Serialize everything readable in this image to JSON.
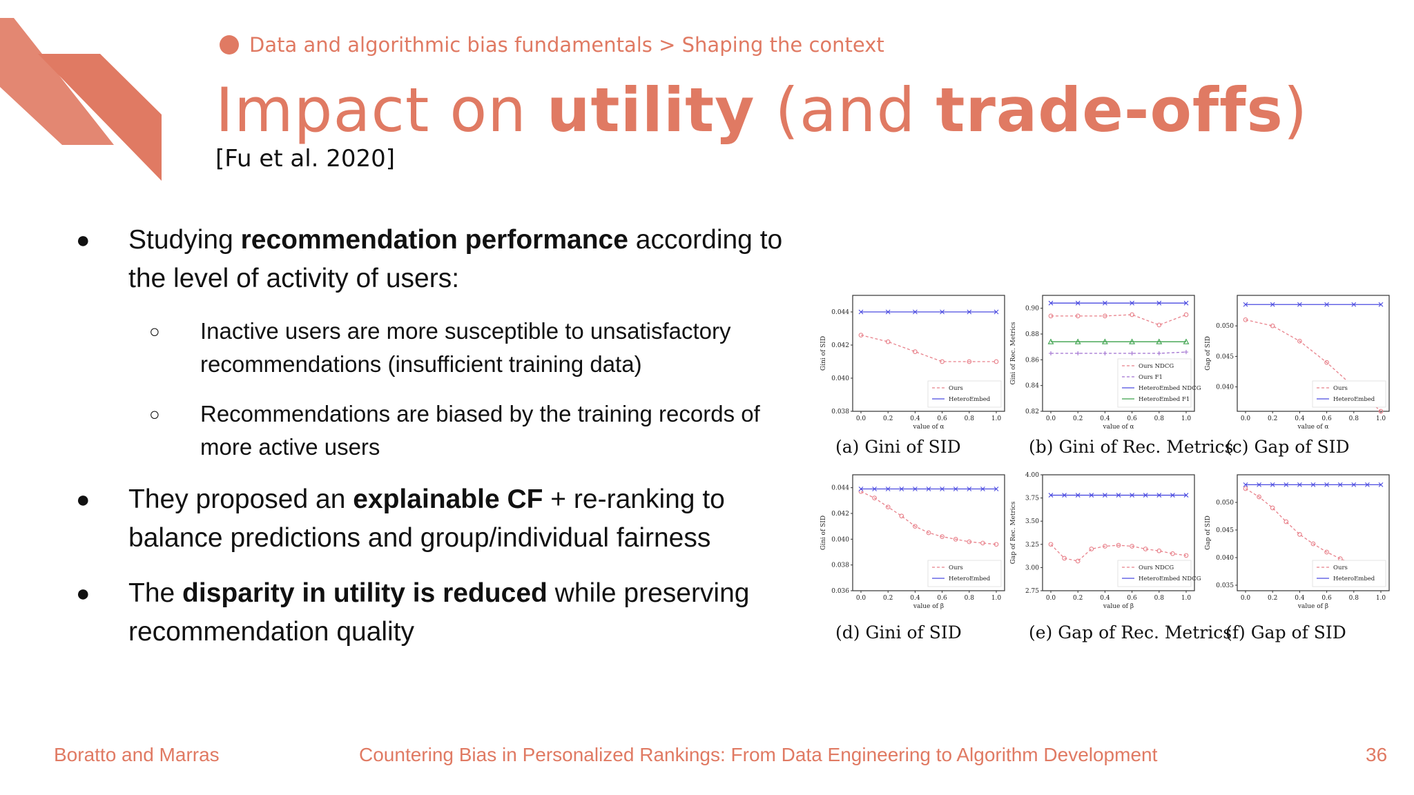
{
  "header": {
    "breadcrumb": "Data and algorithmic bias fundamentals > Shaping the context",
    "title_parts": [
      "Impact on ",
      "utility",
      " (and ",
      "trade-offs",
      ")"
    ],
    "citation": "[Fu et al. 2020]"
  },
  "bullets": [
    {
      "parts": [
        "Studying ",
        "recommendation performance",
        " according to the level of activity of users:"
      ]
    },
    {
      "sub": "Inactive users are more susceptible to unsatisfactory recommendations (insufficient training data)"
    },
    {
      "sub": "Recommendations are biased by the training records of more active users"
    },
    {
      "parts": [
        "They proposed an ",
        "explainable CF",
        " + re-ranking to balance predictions and group/individual fairness"
      ]
    },
    {
      "parts": [
        "The ",
        "disparity in utility is reduced",
        " while preserving recommendation quality"
      ]
    }
  ],
  "footer": {
    "authors": "Boratto and Marras",
    "course": "Countering Bias in Personalized Rankings: From Data Engineering to Algorithm Development",
    "page": "36"
  },
  "colors": {
    "accent": "#e07a63",
    "ours": "#e8808a",
    "hetero": "#4a4ae0",
    "green": "#3aa04a"
  },
  "chart_data": [
    {
      "id": "a",
      "type": "line",
      "caption": "(a) Gini of SID",
      "ylabel": "Gini of SID",
      "xlabel": "value of α",
      "ylim": [
        0.038,
        0.045
      ],
      "yticks": [
        "0.038",
        "0.040",
        "0.042",
        "0.044"
      ],
      "x": [
        0.0,
        0.2,
        0.4,
        0.6,
        0.8,
        1.0
      ],
      "xticks": [
        "0.0",
        "0.2",
        "0.4",
        "0.6",
        "0.8",
        "1.0"
      ],
      "series": [
        {
          "name": "Ours",
          "style": "ours",
          "values": [
            0.0426,
            0.0422,
            0.0416,
            0.041,
            0.041,
            0.041
          ]
        },
        {
          "name": "HeteroEmbed",
          "style": "hetero",
          "values": [
            0.044,
            0.044,
            0.044,
            0.044,
            0.044,
            0.044
          ]
        }
      ]
    },
    {
      "id": "b",
      "type": "line",
      "caption": "(b) Gini of Rec. Metrics",
      "ylabel": "Gini of Rec. Metrics",
      "xlabel": "value of α",
      "ylim": [
        0.82,
        0.91
      ],
      "yticks": [
        "0.82",
        "0.84",
        "0.86",
        "0.88",
        "0.90"
      ],
      "x": [
        0.0,
        0.2,
        0.4,
        0.6,
        0.8,
        1.0
      ],
      "xticks": [
        "0.0",
        "0.2",
        "0.4",
        "0.6",
        "0.8",
        "1.0"
      ],
      "series": [
        {
          "name": "Ours NDCG",
          "style": "ours",
          "values": [
            0.894,
            0.894,
            0.894,
            0.895,
            0.887,
            0.895
          ]
        },
        {
          "name": "Ours F1",
          "style": "oursf1",
          "values": [
            0.865,
            0.865,
            0.865,
            0.865,
            0.865,
            0.866
          ]
        },
        {
          "name": "HeteroEmbed NDCG",
          "style": "hetero",
          "values": [
            0.904,
            0.904,
            0.904,
            0.904,
            0.904,
            0.904
          ]
        },
        {
          "name": "HeteroEmbed F1",
          "style": "green",
          "values": [
            0.874,
            0.874,
            0.874,
            0.874,
            0.874,
            0.874
          ]
        }
      ]
    },
    {
      "id": "c",
      "type": "line",
      "caption": "(c) Gap of SID",
      "ylabel": "Gap of SID",
      "xlabel": "value of α",
      "ylim": [
        0.036,
        0.055
      ],
      "yticks": [
        "0.040",
        "0.045",
        "0.050"
      ],
      "x": [
        0.0,
        0.2,
        0.4,
        0.6,
        0.8,
        1.0
      ],
      "xticks": [
        "0.0",
        "0.2",
        "0.4",
        "0.6",
        "0.8",
        "1.0"
      ],
      "series": [
        {
          "name": "Ours",
          "style": "ours",
          "values": [
            0.051,
            0.05,
            0.0475,
            0.044,
            0.04,
            0.036
          ]
        },
        {
          "name": "HeteroEmbed",
          "style": "hetero",
          "values": [
            0.0535,
            0.0535,
            0.0535,
            0.0535,
            0.0535,
            0.0535
          ]
        }
      ]
    },
    {
      "id": "d",
      "type": "line",
      "caption": "(d) Gini of SID",
      "ylabel": "Gini of SID",
      "xlabel": "value of β",
      "ylim": [
        0.036,
        0.045
      ],
      "yticks": [
        "0.036",
        "0.038",
        "0.040",
        "0.042",
        "0.044"
      ],
      "x": [
        0.0,
        0.1,
        0.2,
        0.3,
        0.4,
        0.5,
        0.6,
        0.7,
        0.8,
        0.9,
        1.0
      ],
      "xticks": [
        "0.0",
        "0.2",
        "0.4",
        "0.6",
        "0.8",
        "1.0"
      ],
      "series": [
        {
          "name": "Ours",
          "style": "ours",
          "values": [
            0.0437,
            0.0432,
            0.0425,
            0.0418,
            0.041,
            0.0405,
            0.0402,
            0.04,
            0.0398,
            0.0397,
            0.0396
          ]
        },
        {
          "name": "HeteroEmbed",
          "style": "hetero",
          "values": [
            0.0439,
            0.0439,
            0.0439,
            0.0439,
            0.0439,
            0.0439,
            0.0439,
            0.0439,
            0.0439,
            0.0439,
            0.0439
          ]
        }
      ]
    },
    {
      "id": "e",
      "type": "line",
      "caption": "(e) Gap of Rec. Metrics",
      "ylabel": "Gap of Rec. Metrics",
      "xlabel": "value of β",
      "ylim": [
        2.75,
        4.0
      ],
      "yticks": [
        "2.75",
        "3.00",
        "3.25",
        "3.50",
        "3.75",
        "4.00"
      ],
      "x": [
        0.0,
        0.1,
        0.2,
        0.3,
        0.4,
        0.5,
        0.6,
        0.7,
        0.8,
        0.9,
        1.0
      ],
      "xticks": [
        "0.0",
        "0.2",
        "0.4",
        "0.6",
        "0.8",
        "1.0"
      ],
      "series": [
        {
          "name": "Ours NDCG",
          "style": "ours",
          "values": [
            3.25,
            3.1,
            3.07,
            3.2,
            3.23,
            3.24,
            3.23,
            3.2,
            3.18,
            3.15,
            3.13
          ]
        },
        {
          "name": "HeteroEmbed NDCG",
          "style": "hetero",
          "values": [
            3.78,
            3.78,
            3.78,
            3.78,
            3.78,
            3.78,
            3.78,
            3.78,
            3.78,
            3.78,
            3.78
          ]
        }
      ]
    },
    {
      "id": "f",
      "type": "line",
      "caption": "(f) Gap of SID",
      "ylabel": "Gap of SID",
      "xlabel": "value of β",
      "ylim": [
        0.034,
        0.055
      ],
      "yticks": [
        "0.035",
        "0.040",
        "0.045",
        "0.050"
      ],
      "x": [
        0.0,
        0.1,
        0.2,
        0.3,
        0.4,
        0.5,
        0.6,
        0.7,
        0.8,
        0.9,
        1.0
      ],
      "xticks": [
        "0.0",
        "0.2",
        "0.4",
        "0.6",
        "0.8",
        "1.0"
      ],
      "series": [
        {
          "name": "Ours",
          "style": "ours",
          "values": [
            0.0525,
            0.051,
            0.049,
            0.0465,
            0.0442,
            0.0425,
            0.041,
            0.0398,
            0.0388,
            0.038,
            0.0375
          ]
        },
        {
          "name": "HeteroEmbed",
          "style": "hetero",
          "values": [
            0.0532,
            0.0532,
            0.0532,
            0.0532,
            0.0532,
            0.0532,
            0.0532,
            0.0532,
            0.0532,
            0.0532,
            0.0532
          ]
        }
      ]
    }
  ]
}
